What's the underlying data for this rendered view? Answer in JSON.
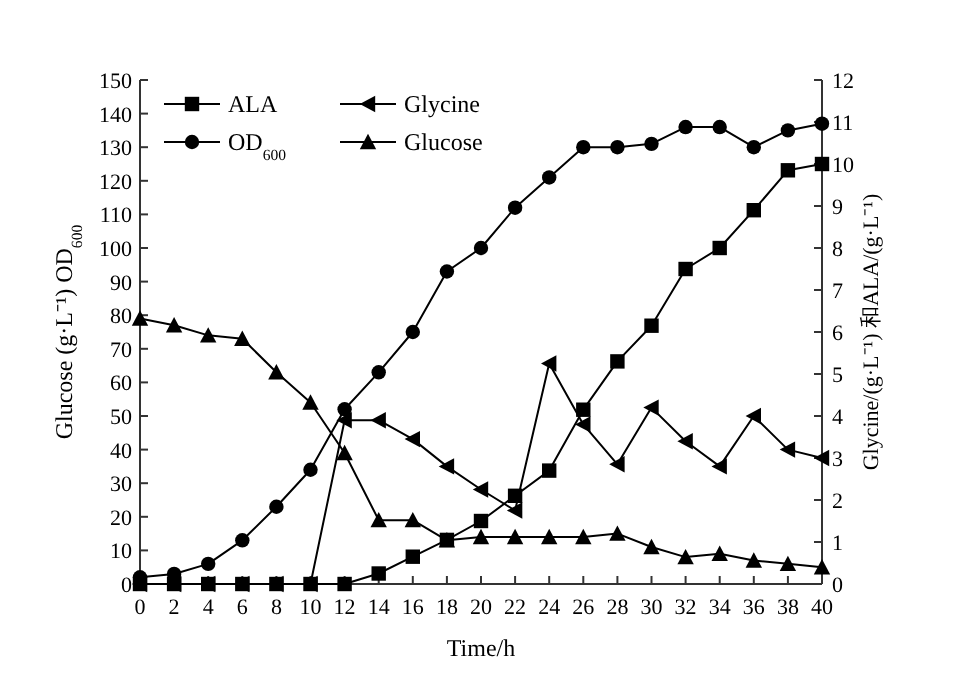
{
  "chart_data": {
    "type": "line",
    "xlabel": "Time/h",
    "ylabel": "Glucose (g·L⁻¹) OD$_{600}$",
    "y2label": "Glycine/(g·L⁻¹) 和ALA/(g·L⁻¹)",
    "x": [
      0,
      2,
      4,
      6,
      8,
      10,
      12,
      14,
      16,
      18,
      20,
      22,
      24,
      26,
      28,
      30,
      32,
      34,
      36,
      38,
      40
    ],
    "xlim": [
      0,
      40
    ],
    "xticks": [
      0,
      2,
      4,
      6,
      8,
      10,
      12,
      14,
      16,
      18,
      20,
      22,
      24,
      26,
      28,
      30,
      32,
      34,
      36,
      38,
      40
    ],
    "ylim": [
      0,
      150
    ],
    "yticks": [
      0,
      10,
      20,
      30,
      40,
      50,
      60,
      70,
      80,
      90,
      100,
      110,
      120,
      130,
      140,
      150
    ],
    "y2lim": [
      0,
      12
    ],
    "y2ticks": [
      0,
      1,
      2,
      3,
      4,
      5,
      6,
      7,
      8,
      9,
      10,
      11,
      12
    ],
    "legend": "top left",
    "grid": false,
    "series": [
      {
        "name": "ALA",
        "color": "#000000",
        "marker": "square",
        "axis": "y2",
        "values": [
          0,
          0,
          0,
          0,
          0,
          0,
          0,
          0.25,
          0.65,
          1.05,
          1.5,
          2.1,
          2.7,
          4.15,
          5.3,
          6.15,
          7.5,
          8.0,
          8.9,
          9.85,
          10.0
        ]
      },
      {
        "name": "Glycine",
        "color": "#000000",
        "marker": "triangle-left",
        "axis": "y2",
        "values": [
          0,
          0,
          0,
          0,
          0,
          0,
          3.9,
          3.9,
          3.45,
          2.8,
          2.25,
          1.75,
          5.25,
          3.8,
          2.85,
          4.2,
          3.4,
          2.8,
          4.0,
          3.2,
          3.0
        ]
      },
      {
        "name": "OD$_{600}$",
        "color": "#000000",
        "marker": "circle",
        "values": [
          2,
          3,
          6,
          13,
          23,
          34,
          52,
          63,
          75,
          93,
          100,
          112,
          121,
          130,
          130,
          131,
          136,
          136,
          130,
          135,
          137
        ]
      },
      {
        "name": "Glucose",
        "color": "#000000",
        "marker": "triangle",
        "values": [
          79,
          77,
          74,
          73,
          63,
          54,
          39,
          19,
          19,
          13,
          14,
          14,
          14,
          14,
          15,
          11,
          8,
          9,
          7,
          6,
          5
        ]
      }
    ]
  }
}
